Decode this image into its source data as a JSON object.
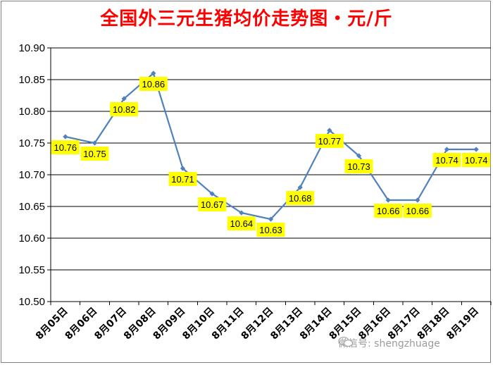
{
  "chart_data": {
    "type": "line",
    "title": "全国外三元生猪均价走势图・元/斤",
    "categories": [
      "8月05日",
      "8月06日",
      "8月07日",
      "8月08日",
      "8月09日",
      "8月10日",
      "8月11日",
      "8月12日",
      "8月13日",
      "8月14日",
      "8月15日",
      "8月16日",
      "8月17日",
      "8月18日",
      "8月19日"
    ],
    "series": [
      {
        "values": [
          10.76,
          10.75,
          10.82,
          10.86,
          10.71,
          10.67,
          10.64,
          10.63,
          10.68,
          10.77,
          10.73,
          10.66,
          10.66,
          10.74,
          10.74
        ],
        "labels": [
          "10.76",
          "10.75",
          "10.82",
          "10.86",
          "10.71",
          "10.67",
          "10.64",
          "10.63",
          "10.68",
          "10.77",
          "10.73",
          "10.66",
          "10.66",
          "10.74",
          "10.74"
        ]
      }
    ],
    "ylim": [
      10.5,
      10.9
    ],
    "yticks": [
      "10.50",
      "10.55",
      "10.60",
      "10.65",
      "10.70",
      "10.75",
      "10.80",
      "10.85",
      "10.90"
    ],
    "grid": true,
    "legend": "none",
    "colors": {
      "line": "#4f81bd",
      "label_bg": "#ffff00",
      "title": "#ff0000",
      "grid": "#000000"
    }
  },
  "watermark": {
    "text": "微信号: shengzhuage",
    "icon": "wechat-icon"
  }
}
